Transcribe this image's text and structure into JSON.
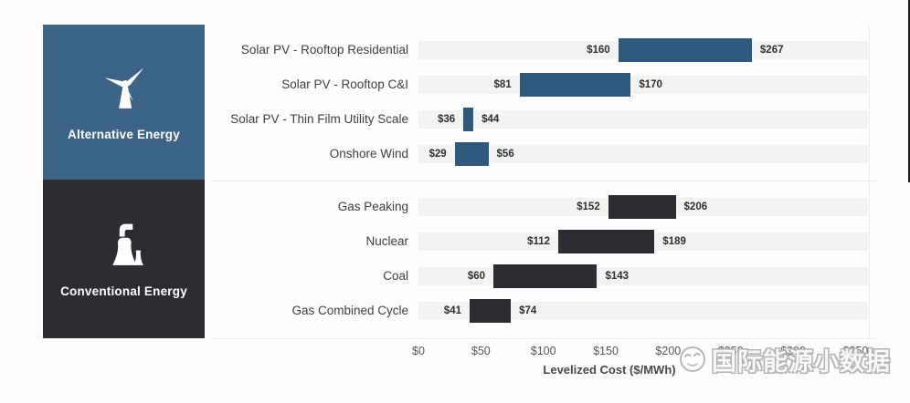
{
  "chart_data": {
    "type": "bar",
    "orientation": "horizontal-range",
    "title": "",
    "xlabel": "Levelized Cost ($/MWh)",
    "x_ticks": [
      "$0",
      "$50",
      "$100",
      "$150",
      "$200",
      "$250",
      "$300",
      "$350"
    ],
    "x_tick_values": [
      0,
      50,
      100,
      150,
      200,
      250,
      300,
      350
    ],
    "xlim": [
      0,
      360
    ],
    "grid": false,
    "legend_position": "left-panels",
    "groups": [
      {
        "name": "Alternative Energy",
        "icon": "wind-turbine-icon",
        "panel_color": "#3c6486",
        "bar_color": "#2f597c",
        "rows": [
          {
            "label": "Solar PV - Rooftop Residential",
            "low": 160,
            "high": 267,
            "low_label": "$160",
            "high_label": "$267"
          },
          {
            "label": "Solar PV - Rooftop C&I",
            "low": 81,
            "high": 170,
            "low_label": "$81",
            "high_label": "$170"
          },
          {
            "label": "Solar PV - Thin Film Utility Scale",
            "low": 36,
            "high": 44,
            "low_label": "$36",
            "high_label": "$44"
          },
          {
            "label": "Onshore Wind",
            "low": 29,
            "high": 56,
            "low_label": "$29",
            "high_label": "$56"
          }
        ]
      },
      {
        "name": "Conventional Energy",
        "icon": "power-plant-icon",
        "panel_color": "#2b2d33",
        "bar_color": "#2b2d32",
        "rows": [
          {
            "label": "Gas Peaking",
            "low": 152,
            "high": 206,
            "low_label": "$152",
            "high_label": "$206"
          },
          {
            "label": "Nuclear",
            "low": 112,
            "high": 189,
            "low_label": "$112",
            "high_label": "$189"
          },
          {
            "label": "Coal",
            "low": 60,
            "high": 143,
            "low_label": "$60",
            "high_label": "$143"
          },
          {
            "label": "Gas Combined Cycle",
            "low": 41,
            "high": 74,
            "low_label": "$41",
            "high_label": "$74"
          }
        ]
      }
    ],
    "track_color": "#f3f3f1",
    "value_label_color": "#303030"
  },
  "watermark": {
    "text": "国际能源小数据",
    "logo": "bird-face-icon"
  }
}
